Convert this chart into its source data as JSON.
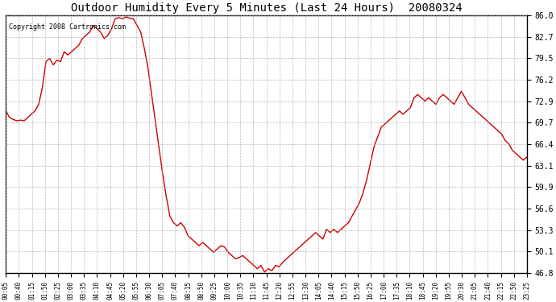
{
  "title": "Outdoor Humidity Every 5 Minutes (Last 24 Hours)  20080324",
  "copyright_text": "Copyright 2008 Cartronics.com",
  "line_color": "#cc0000",
  "bg_color": "#ffffff",
  "grid_color": "#aaaaaa",
  "yticks": [
    46.8,
    50.1,
    53.3,
    56.6,
    59.9,
    63.1,
    66.4,
    69.7,
    72.9,
    76.2,
    79.5,
    82.7,
    86.0
  ],
  "ylim": [
    46.8,
    86.0
  ],
  "xtick_labels": [
    "00:05",
    "00:40",
    "01:15",
    "01:50",
    "02:25",
    "03:00",
    "03:35",
    "04:10",
    "04:45",
    "05:20",
    "05:55",
    "06:30",
    "07:05",
    "07:40",
    "08:15",
    "08:50",
    "09:25",
    "10:00",
    "10:35",
    "11:10",
    "11:45",
    "12:20",
    "12:55",
    "13:30",
    "14:05",
    "14:40",
    "15:15",
    "15:50",
    "16:25",
    "17:00",
    "17:35",
    "18:10",
    "18:45",
    "19:20",
    "19:55",
    "20:30",
    "21:05",
    "21:40",
    "22:15",
    "22:50",
    "23:25"
  ],
  "humidity_values": [
    71.5,
    70.5,
    70.2,
    70.0,
    70.1,
    70.0,
    70.5,
    71.0,
    71.5,
    72.5,
    75.0,
    79.0,
    79.5,
    78.5,
    79.2,
    79.0,
    80.5,
    80.0,
    80.5,
    81.0,
    81.5,
    82.5,
    83.0,
    83.5,
    84.5,
    84.0,
    83.5,
    82.5,
    83.0,
    84.0,
    85.5,
    85.7,
    85.5,
    85.8,
    85.6,
    85.5,
    84.5,
    83.5,
    81.0,
    78.0,
    74.0,
    70.0,
    66.0,
    62.0,
    58.5,
    55.5,
    54.5,
    54.0,
    54.5,
    53.8,
    52.5,
    52.0,
    51.5,
    51.0,
    51.5,
    51.0,
    50.5,
    50.0,
    50.5,
    51.0,
    50.8,
    50.0,
    49.5,
    49.0,
    49.2,
    49.5,
    49.0,
    48.5,
    48.0,
    47.5,
    48.0,
    47.0,
    47.5,
    47.2,
    48.0,
    47.8,
    48.5,
    49.0,
    49.5,
    50.0,
    50.5,
    51.0,
    51.5,
    52.0,
    52.5,
    53.0,
    52.5,
    52.0,
    53.5,
    53.0,
    53.5,
    53.0,
    53.5,
    54.0,
    54.5,
    55.5,
    56.5,
    57.5,
    59.0,
    61.0,
    63.5,
    66.0,
    67.5,
    69.0,
    69.5,
    70.0,
    70.5,
    71.0,
    71.5,
    71.0,
    71.5,
    72.0,
    73.5,
    74.0,
    73.5,
    73.0,
    73.5,
    73.0,
    72.5,
    73.5,
    74.0,
    73.5,
    73.0,
    72.5,
    73.5,
    74.5,
    73.5,
    72.5,
    72.0,
    71.5,
    71.0,
    70.5,
    70.0,
    69.5,
    69.0,
    68.5,
    68.0,
    67.0,
    66.5,
    65.5,
    65.0,
    64.5,
    64.0,
    64.5
  ]
}
